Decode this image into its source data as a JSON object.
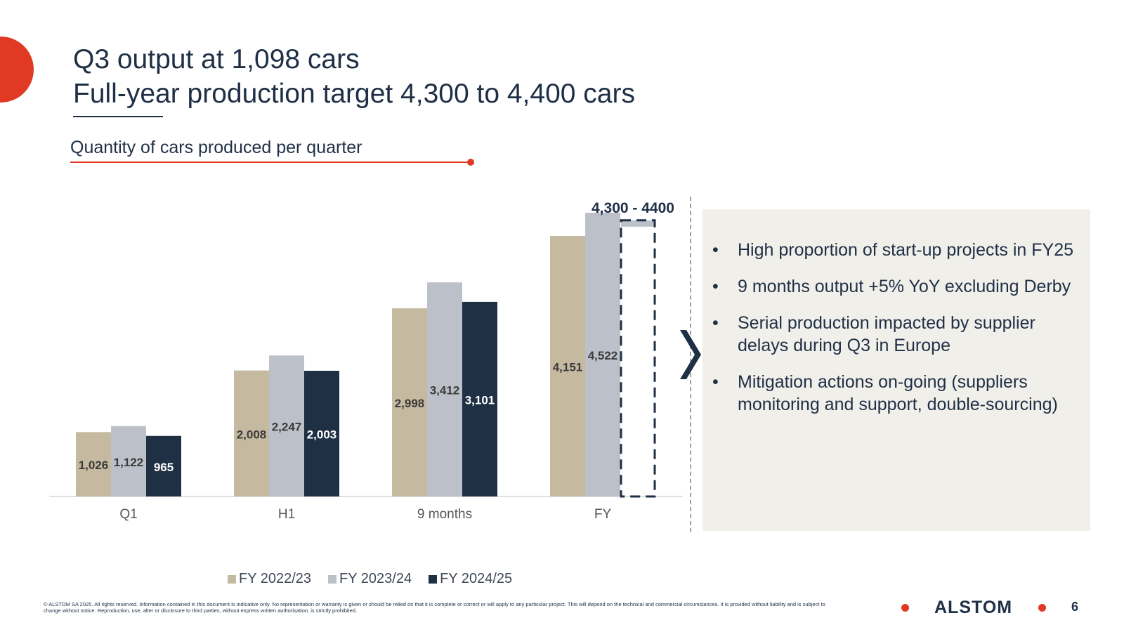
{
  "slide": {
    "title_line1": "Q3 output at 1,098 cars",
    "title_line2": "Full-year production target 4,300 to 4,400 cars",
    "subtitle": "Quantity of cars produced per quarter",
    "range_label": "4,300 - 4400",
    "bullets": [
      "High proportion of start-up projects in FY25",
      "9 months output +5% YoY excluding Derby",
      "Serial production impacted by supplier delays during Q3 in Europe",
      "Mitigation actions on-going (suppliers monitoring and support, double-sourcing)"
    ],
    "bullet_char": "•",
    "footer": "© ALSTOM SA 2025. All rights reserved. Information contained in this document is indicative only. No representation or warranty is given or should be relied on that it is complete or correct or will apply to any particular project. This will depend on the technical and commercial circumstances. It is provided without liability and is subject to change without notice. Reproduction, use, alter or disclosure to third parties, without express written authorisation, is strictly prohibited.",
    "logo": "ALSTOM",
    "page_number": "6"
  },
  "colors": {
    "accent_red": "#e03a24",
    "navy": "#1f2f45",
    "fy2223": "#c5b9a0",
    "fy2324": "#bcc0c8",
    "fy2425": "#1f3045",
    "panel_bg": "#f1efea"
  },
  "chart_data": {
    "type": "bar",
    "categories": [
      "Q1",
      "H1",
      "9 months",
      "FY"
    ],
    "series": [
      {
        "name": "FY 2022/23",
        "values": [
          1026,
          2008,
          2998,
          4151
        ],
        "labels": [
          "1,026",
          "2,008",
          "2,998",
          "4,151"
        ]
      },
      {
        "name": "FY 2023/24",
        "values": [
          1122,
          2247,
          3412,
          4522
        ],
        "labels": [
          "1,122",
          "2,247",
          "3,412",
          "4,522"
        ]
      },
      {
        "name": "FY 2024/25",
        "values": [
          965,
          2003,
          3101,
          null
        ],
        "labels": [
          "965",
          "2,003",
          "3,101",
          ""
        ]
      }
    ],
    "target_range": [
      4300,
      4400
    ],
    "target_label": "4,300 - 4400",
    "ylim": [
      0,
      4700
    ],
    "legend_position": "bottom"
  }
}
